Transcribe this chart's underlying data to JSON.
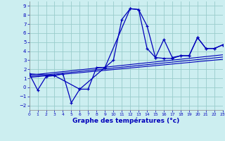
{
  "xlabel": "Graphe des températures (°c)",
  "bg_color": "#cceef0",
  "grid_color": "#99cccc",
  "line_color": "#0000bb",
  "xlim": [
    0,
    23
  ],
  "ylim": [
    -2.5,
    9.5
  ],
  "yticks": [
    -2,
    -1,
    0,
    1,
    2,
    3,
    4,
    5,
    6,
    7,
    8,
    9
  ],
  "xticks": [
    0,
    1,
    2,
    3,
    4,
    5,
    6,
    7,
    8,
    9,
    10,
    11,
    12,
    13,
    14,
    15,
    16,
    17,
    18,
    19,
    20,
    21,
    22,
    23
  ],
  "hourly_x": [
    0,
    1,
    2,
    3,
    4,
    5,
    6,
    7,
    8,
    9,
    10,
    11,
    12,
    13,
    14,
    15,
    16,
    17,
    18,
    19,
    20,
    21,
    22,
    23
  ],
  "hourly_y": [
    1.5,
    -0.3,
    1.2,
    1.3,
    1.5,
    -1.7,
    -0.2,
    -0.2,
    2.2,
    2.2,
    3.0,
    7.5,
    8.7,
    8.6,
    6.8,
    3.3,
    3.2,
    3.2,
    3.5,
    3.5,
    5.5,
    4.3,
    4.3,
    4.7
  ],
  "synop_x": [
    0,
    3,
    6,
    9,
    12,
    13,
    14,
    15,
    16,
    17,
    18,
    19,
    20,
    21,
    22,
    23
  ],
  "synop_y": [
    1.5,
    1.3,
    -0.2,
    2.2,
    8.7,
    8.6,
    4.3,
    3.3,
    5.3,
    3.3,
    3.5,
    3.5,
    5.5,
    4.3,
    4.3,
    4.7
  ],
  "trend1_x": [
    0,
    23
  ],
  "trend1_y": [
    1.1,
    3.1
  ],
  "trend2_x": [
    0,
    23
  ],
  "trend2_y": [
    1.2,
    3.35
  ],
  "trend3_x": [
    0,
    23
  ],
  "trend3_y": [
    1.35,
    3.6
  ]
}
